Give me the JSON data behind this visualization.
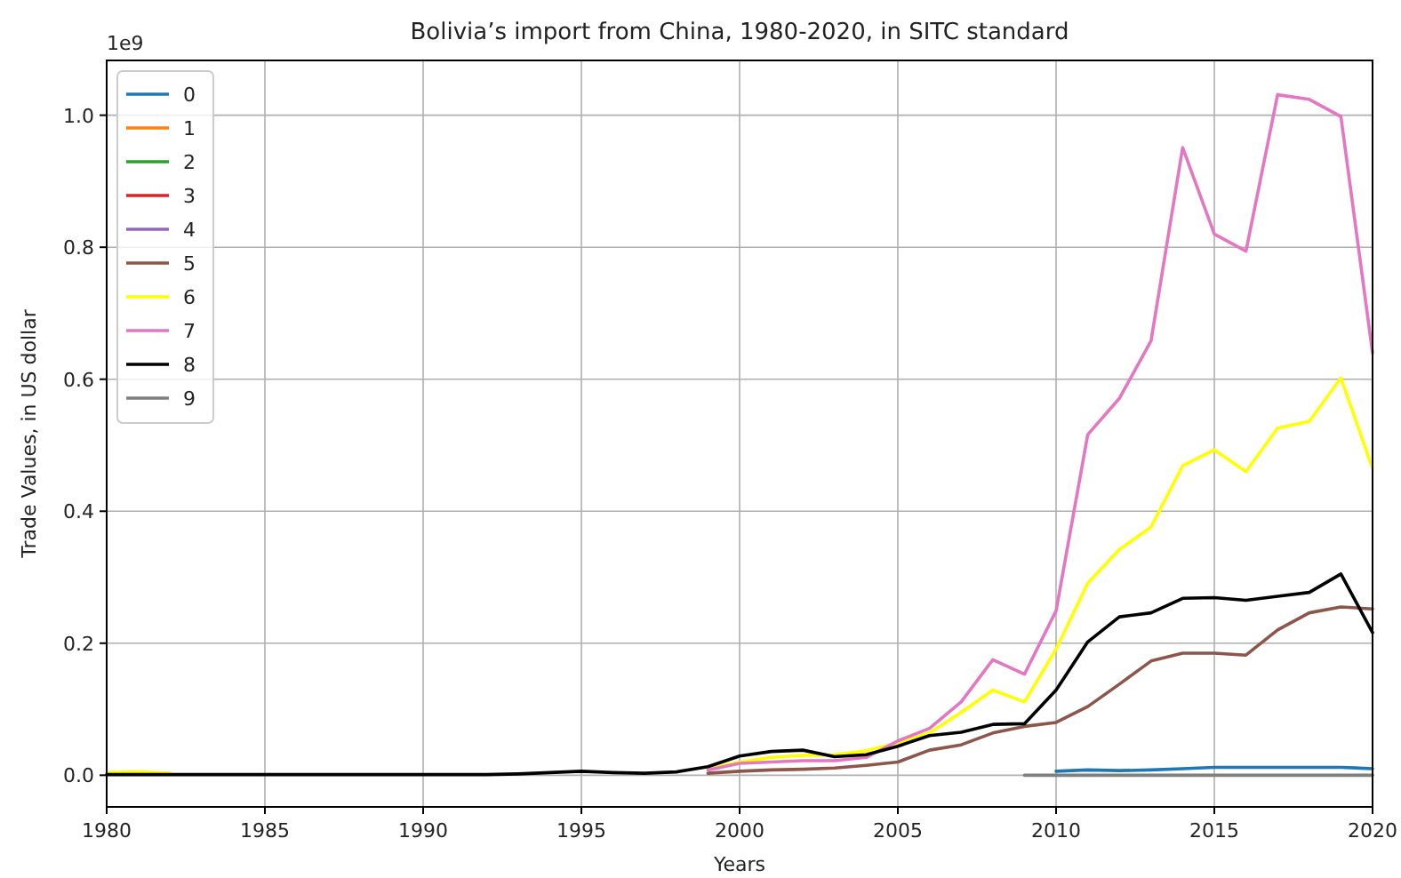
{
  "chart_data": {
    "type": "line",
    "title": "Bolivia’s import from China, 1980-2020, in SITC standard",
    "xlabel": "Years",
    "ylabel": "Trade Values, in US dollar",
    "annotations": [
      "1e9"
    ],
    "x": [
      1980,
      1981,
      1982,
      1983,
      1984,
      1985,
      1986,
      1987,
      1988,
      1989,
      1990,
      1991,
      1992,
      1993,
      1994,
      1995,
      1996,
      1997,
      1998,
      1999,
      2000,
      2001,
      2002,
      2003,
      2004,
      2005,
      2006,
      2007,
      2008,
      2009,
      2010,
      2011,
      2012,
      2013,
      2014,
      2015,
      2016,
      2017,
      2018,
      2019,
      2020
    ],
    "xlim": [
      1980,
      2020
    ],
    "xticks": [
      1980,
      1985,
      1990,
      1995,
      2000,
      2005,
      2010,
      2015,
      2020
    ],
    "ylim": [
      -0.048,
      1.083
    ],
    "yticks": [
      {
        "value": 0,
        "label": "0.0"
      },
      0.2,
      0.4,
      0.6,
      0.8,
      {
        "value": 1,
        "label": "1.0"
      }
    ],
    "grid": true,
    "legend": "top left",
    "series": [
      {
        "name": "0",
        "color": "#1f77b4",
        "values": [
          null,
          null,
          null,
          null,
          null,
          null,
          null,
          null,
          null,
          null,
          null,
          null,
          null,
          null,
          null,
          null,
          null,
          null,
          null,
          null,
          null,
          null,
          null,
          null,
          null,
          null,
          null,
          null,
          null,
          null,
          0.006,
          0.008,
          0.007,
          0.008,
          0.01,
          0.012,
          0.012,
          0.012,
          0.012,
          0.012,
          0.01
        ]
      },
      {
        "name": "1",
        "color": "#ff7f0e",
        "values": [
          null,
          null,
          null,
          null,
          null,
          null,
          null,
          null,
          null,
          null,
          null,
          null,
          null,
          null,
          null,
          null,
          null,
          null,
          null,
          null,
          null,
          null,
          null,
          null,
          null,
          null,
          null,
          null,
          null,
          null,
          null,
          null,
          null,
          null,
          null,
          null,
          null,
          null,
          null,
          null,
          null
        ]
      },
      {
        "name": "2",
        "color": "#2ca02c",
        "values": [
          null,
          null,
          null,
          null,
          null,
          null,
          null,
          null,
          null,
          null,
          null,
          null,
          null,
          null,
          null,
          null,
          null,
          null,
          null,
          null,
          null,
          null,
          null,
          null,
          null,
          null,
          null,
          null,
          null,
          null,
          null,
          null,
          null,
          null,
          null,
          null,
          null,
          null,
          null,
          null,
          null
        ]
      },
      {
        "name": "3",
        "color": "#d62728",
        "values": [
          null,
          null,
          null,
          null,
          null,
          null,
          null,
          null,
          null,
          null,
          null,
          null,
          null,
          null,
          null,
          null,
          null,
          null,
          null,
          null,
          null,
          null,
          null,
          null,
          null,
          null,
          null,
          null,
          null,
          null,
          null,
          null,
          null,
          null,
          null,
          null,
          null,
          null,
          null,
          null,
          null
        ]
      },
      {
        "name": "4",
        "color": "#9467bd",
        "values": [
          null,
          null,
          null,
          null,
          null,
          null,
          null,
          null,
          null,
          null,
          null,
          null,
          null,
          null,
          null,
          null,
          null,
          null,
          null,
          null,
          null,
          null,
          null,
          null,
          null,
          null,
          null,
          null,
          null,
          null,
          null,
          null,
          null,
          null,
          null,
          null,
          null,
          null,
          null,
          null,
          null
        ]
      },
      {
        "name": "5",
        "color": "#8c564b",
        "values": [
          null,
          null,
          null,
          null,
          null,
          null,
          null,
          null,
          null,
          null,
          null,
          null,
          null,
          null,
          null,
          null,
          null,
          null,
          null,
          0.003,
          0.006,
          0.008,
          0.009,
          0.011,
          0.015,
          0.02,
          0.038,
          0.046,
          0.064,
          0.074,
          0.08,
          0.104,
          0.138,
          0.173,
          0.185,
          0.185,
          0.182,
          0.22,
          0.246,
          0.255,
          0.252
        ]
      },
      {
        "name": "6",
        "color": "#ffff00",
        "values": [
          0.004,
          0.005,
          0.003,
          null,
          null,
          null,
          null,
          null,
          null,
          null,
          null,
          null,
          null,
          null,
          null,
          null,
          null,
          null,
          null,
          0.01,
          0.02,
          0.027,
          0.03,
          0.031,
          0.037,
          0.049,
          0.064,
          0.095,
          0.129,
          0.111,
          0.191,
          0.291,
          0.342,
          0.376,
          0.469,
          0.493,
          0.46,
          0.526,
          0.536,
          0.602,
          0.465
        ]
      },
      {
        "name": "7",
        "color": "#e377c2",
        "values": [
          null,
          null,
          null,
          null,
          null,
          null,
          null,
          null,
          null,
          null,
          null,
          null,
          null,
          null,
          null,
          null,
          null,
          null,
          null,
          0.008,
          0.018,
          0.02,
          0.022,
          0.022,
          0.027,
          0.052,
          0.071,
          0.111,
          0.175,
          0.153,
          0.249,
          0.516,
          0.571,
          0.658,
          0.951,
          0.82,
          0.794,
          1.031,
          1.024,
          0.998,
          0.64
        ]
      },
      {
        "name": "8",
        "color": "#000000",
        "values": [
          0.001,
          0.001,
          0.001,
          0.001,
          0.001,
          0.001,
          0.001,
          0.001,
          0.001,
          0.001,
          0.001,
          0.001,
          0.001,
          0.002,
          0.004,
          0.006,
          0.004,
          0.003,
          0.005,
          0.013,
          0.029,
          0.036,
          0.038,
          0.028,
          0.031,
          0.044,
          0.06,
          0.065,
          0.077,
          0.078,
          0.129,
          0.202,
          0.24,
          0.246,
          0.268,
          0.269,
          0.265,
          0.271,
          0.277,
          0.305,
          0.216
        ]
      },
      {
        "name": "9",
        "color": "#7f7f7f",
        "values": [
          null,
          null,
          null,
          null,
          null,
          null,
          null,
          null,
          null,
          null,
          null,
          null,
          null,
          null,
          null,
          null,
          null,
          null,
          null,
          null,
          null,
          null,
          null,
          null,
          null,
          null,
          null,
          null,
          null,
          0,
          0,
          0,
          0,
          0,
          0,
          0,
          0,
          0,
          0,
          0,
          0
        ]
      }
    ]
  }
}
